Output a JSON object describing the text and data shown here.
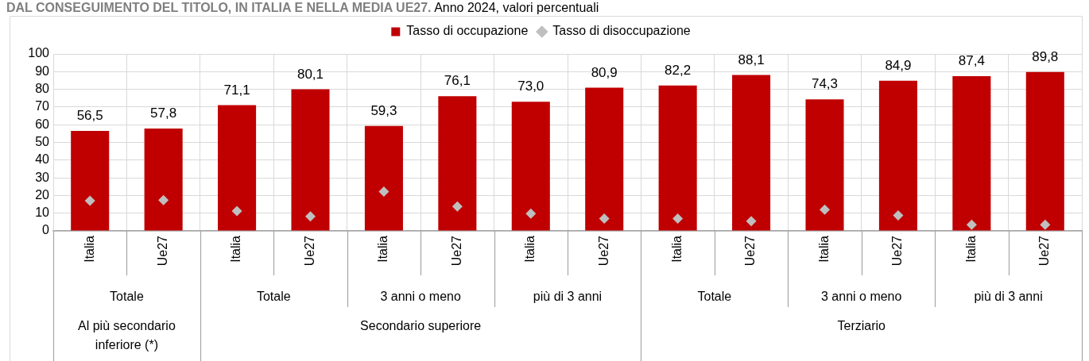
{
  "chart_data": {
    "type": "bar",
    "title": "DAL CONSEGUIMENTO DEL TITOLO, IN ITALIA E NELLA MEDIA UE27.",
    "subtitle": "Anno 2024, valori percentuali",
    "categories": [
      "Italia",
      "Ue27",
      "Italia",
      "Ue27",
      "Italia",
      "Ue27",
      "Italia",
      "Ue27",
      "Italia",
      "Ue27",
      "Italia",
      "Ue27",
      "Italia",
      "Ue27"
    ],
    "series": [
      {
        "name": "Tasso di occupazione",
        "color": "#c00000",
        "values": [
          56.5,
          57.8,
          71.1,
          80.1,
          59.3,
          76.1,
          73.0,
          80.9,
          82.2,
          88.1,
          74.3,
          84.9,
          87.4,
          89.8
        ],
        "value_labels": [
          "56,5",
          "57,8",
          "71,1",
          "80,1",
          "59,3",
          "76,1",
          "73,0",
          "80,9",
          "82,2",
          "88,1",
          "74,3",
          "84,9",
          "87,4",
          "89,8"
        ]
      },
      {
        "name": "Tasso di disoccupazione",
        "type": "scatter",
        "marker": "diamond",
        "color": "#bfbfbf",
        "values": [
          17.0,
          17.4,
          11.2,
          8.2,
          22.2,
          13.8,
          9.8,
          6.9,
          6.9,
          5.5,
          12.0,
          8.8,
          3.5,
          3.5
        ]
      }
    ],
    "ylim": [
      0,
      100
    ],
    "yticks": [
      0,
      10,
      20,
      30,
      40,
      50,
      60,
      70,
      80,
      90,
      100
    ],
    "grid": true,
    "legend": "top",
    "annotations": [
      "Totale",
      "Totale",
      "3 anni o meno",
      "più di 3 anni",
      "Totale",
      "3 anni o meno",
      "più di 3 anni",
      "Al più secondario inferiore (*)",
      "Secondario superiore",
      "Terziario"
    ]
  }
}
